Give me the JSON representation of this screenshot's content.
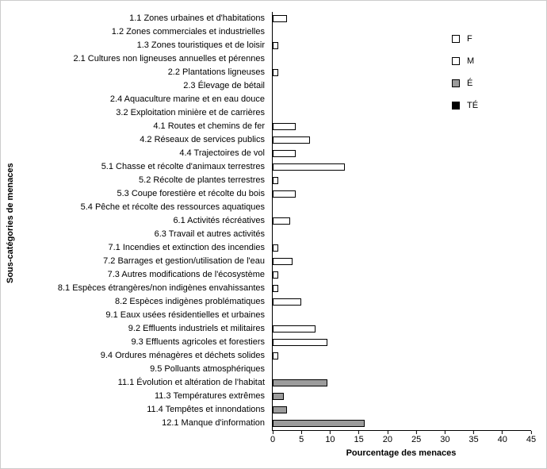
{
  "figure": {
    "background": "#ffffff",
    "border_color": "#cccccc"
  },
  "chart_data": {
    "type": "bar",
    "orientation": "horizontal",
    "title": "",
    "xlabel": "Pourcentage des menaces",
    "ylabel": "Sous-catégories de menaces",
    "xlim": [
      0,
      45
    ],
    "xticks": [
      0,
      5,
      10,
      15,
      20,
      25,
      30,
      35,
      40,
      45
    ],
    "grid": false,
    "legend_position": "top-right",
    "series": [
      {
        "name": "F",
        "fill": "#ffffff",
        "stroke": "#000000"
      },
      {
        "name": "M",
        "fill": "#ffffff",
        "stroke": "#000000"
      },
      {
        "name": "É",
        "fill": "#9c9c9c",
        "stroke": "#000000"
      },
      {
        "name": "TÉ",
        "fill": "#000000",
        "stroke": "#000000"
      }
    ],
    "bars": [
      {
        "category": "1.1 Zones urbaines et d'habitations",
        "value": 2.5,
        "series": "F"
      },
      {
        "category": "1.2 Zones commerciales et industrielles",
        "value": 0,
        "series": "F"
      },
      {
        "category": "1.3 Zones touristiques et de loisir",
        "value": 1,
        "series": "F"
      },
      {
        "category": "2.1 Cultures non ligneuses annuelles et pérennes",
        "value": 0,
        "series": "F"
      },
      {
        "category": "2.2 Plantations ligneuses",
        "value": 1,
        "series": "F"
      },
      {
        "category": "2.3 Élevage de bétail",
        "value": 0,
        "series": "F"
      },
      {
        "category": "2.4 Aquaculture marine et en eau douce",
        "value": 0,
        "series": "F"
      },
      {
        "category": "3.2 Exploitation minière et de carrières",
        "value": 0,
        "series": "F"
      },
      {
        "category": "4.1 Routes et chemins de fer",
        "value": 4,
        "series": "F"
      },
      {
        "category": "4.2 Réseaux de services publics",
        "value": 6.5,
        "series": "F"
      },
      {
        "category": "4.4 Trajectoires de vol",
        "value": 4,
        "series": "F"
      },
      {
        "category": "5.1 Chasse et récolte d'animaux terrestres",
        "value": 12.5,
        "series": "F"
      },
      {
        "category": "5.2 Récolte de plantes terrestres",
        "value": 1,
        "series": "F"
      },
      {
        "category": "5.3 Coupe forestière et récolte du bois",
        "value": 4,
        "series": "F"
      },
      {
        "category": "5.4 Pêche et récolte des ressources aquatiques",
        "value": 0,
        "series": "F"
      },
      {
        "category": "6.1 Activités récréatives",
        "value": 3,
        "series": "F"
      },
      {
        "category": "6.3 Travail et autres activités",
        "value": 0,
        "series": "F"
      },
      {
        "category": "7.1 Incendies et extinction des incendies",
        "value": 1,
        "series": "F"
      },
      {
        "category": "7.2 Barrages et gestion/utilisation de l'eau",
        "value": 3.5,
        "series": "F"
      },
      {
        "category": "7.3 Autres modifications de l'écosystème",
        "value": 1,
        "series": "F"
      },
      {
        "category": "8.1 Espèces étrangères/non indigènes envahissantes",
        "value": 1,
        "series": "F"
      },
      {
        "category": "8.2 Espèces indigènes problématiques",
        "value": 5,
        "series": "F"
      },
      {
        "category": "9.1 Eaux usées résidentielles et urbaines",
        "value": 0,
        "series": "F"
      },
      {
        "category": "9.2 Effluents industriels et militaires",
        "value": 7.5,
        "series": "F"
      },
      {
        "category": "9.3 Effluents agricoles et forestiers",
        "value": 9.5,
        "series": "F"
      },
      {
        "category": "9.4 Ordures ménagères et déchets solides",
        "value": 1,
        "series": "F"
      },
      {
        "category": "9.5 Polluants atmosphériques",
        "value": 0,
        "series": "F"
      },
      {
        "category": "11.1 Évolution et altération de l'habitat",
        "value": 9.5,
        "series": "É"
      },
      {
        "category": "11.3 Températures extrêmes",
        "value": 2,
        "series": "É"
      },
      {
        "category": "11.4 Tempêtes et innondations",
        "value": 2.5,
        "series": "É"
      },
      {
        "category": "12.1 Manque d'information",
        "value": 16,
        "series": "É"
      }
    ]
  }
}
